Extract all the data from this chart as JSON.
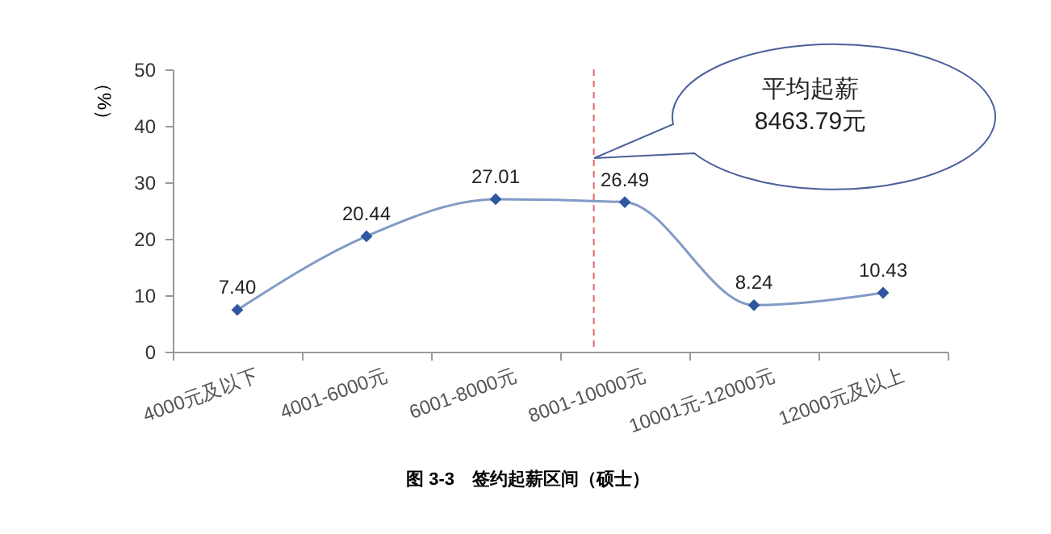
{
  "chart_data": {
    "type": "line",
    "title": "图 3-3　签约起薪区间（硕士）",
    "ylabel": "（%）",
    "categories": [
      "4000元及以下",
      "4001-6000元",
      "6001-8000元",
      "8001-10000元",
      "10001元-12000元",
      "12000元及以上"
    ],
    "series": [
      {
        "color": "#2f56a0",
        "values": [
          7.4,
          20.44,
          27.01,
          26.49,
          8.24,
          10.43
        ],
        "value_labels": [
          "7.40",
          "20.44",
          "27.01",
          "26.49",
          "8.24",
          "10.43"
        ]
      }
    ],
    "ylim": [
      0,
      50
    ],
    "yticks": [
      0,
      10,
      20,
      30,
      40,
      50
    ],
    "marker": "diamond",
    "grid": false,
    "ref_lines": [
      {
        "axis": "x",
        "value": "8001-10000元",
        "label": null,
        "color": "#e06666",
        "line_style": "dashed"
      }
    ],
    "annotations": [
      "平均起薪\n8463.79元"
    ]
  }
}
